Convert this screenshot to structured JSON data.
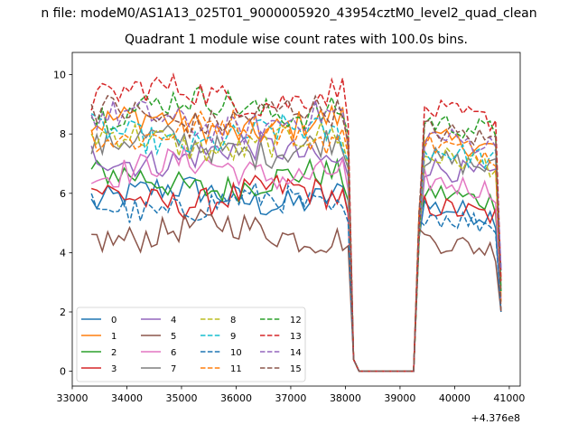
{
  "suptitle": "n file: modeM0/AS1A13_025T01_9000005920_43954cztM0_level2_quad_clean",
  "chart_data": {
    "type": "line",
    "title": "Quadrant 1 module wise count rates with 100.0s bins.",
    "xlabel": "",
    "ylabel": "",
    "offset_text": "+4.376e8",
    "xlim": [
      33000,
      41200
    ],
    "ylim": [
      -0.5,
      10.75
    ],
    "xticks": [
      33000,
      34000,
      35000,
      36000,
      37000,
      38000,
      39000,
      40000,
      41000
    ],
    "yticks": [
      0,
      2,
      4,
      6,
      8,
      10
    ],
    "grid": false,
    "legend_position": "lower-left",
    "segments": [
      {
        "x_start": 33350,
        "x_end": 38150,
        "step": 100
      },
      {
        "x_start": 38250,
        "x_end": 39250,
        "step": 100
      },
      {
        "x_start": 39350,
        "x_end": 40850,
        "step": 100
      }
    ],
    "series": [
      {
        "name": "0",
        "color": "#1f77b4",
        "dash": "solid",
        "level": 5.9
      },
      {
        "name": "1",
        "color": "#ff7f0e",
        "dash": "solid",
        "level": 8.3
      },
      {
        "name": "2",
        "color": "#2ca02c",
        "dash": "solid",
        "level": 6.4
      },
      {
        "name": "3",
        "color": "#d62728",
        "dash": "solid",
        "level": 5.9
      },
      {
        "name": "4",
        "color": "#9467bd",
        "dash": "solid",
        "level": 7.3
      },
      {
        "name": "5",
        "color": "#8c564b",
        "dash": "solid",
        "level": 4.7
      },
      {
        "name": "6",
        "color": "#e377c2",
        "dash": "solid",
        "level": 6.8
      },
      {
        "name": "7",
        "color": "#7f7f7f",
        "dash": "solid",
        "level": 7.6
      },
      {
        "name": "8",
        "color": "#bcbd22",
        "dash": "dashed",
        "level": 7.7
      },
      {
        "name": "9",
        "color": "#17becf",
        "dash": "dashed",
        "level": 7.9
      },
      {
        "name": "10",
        "color": "#1f77b4",
        "dash": "dashed",
        "level": 5.6
      },
      {
        "name": "11",
        "color": "#ff7f0e",
        "dash": "dashed",
        "level": 8.1
      },
      {
        "name": "12",
        "color": "#2ca02c",
        "dash": "dashed",
        "level": 8.9
      },
      {
        "name": "13",
        "color": "#d62728",
        "dash": "dashed",
        "level": 9.3
      },
      {
        "name": "14",
        "color": "#9467bd",
        "dash": "dashed",
        "level": 8.4
      },
      {
        "name": "15",
        "color": "#8c564b",
        "dash": "dashed",
        "level": 8.6
      }
    ]
  }
}
